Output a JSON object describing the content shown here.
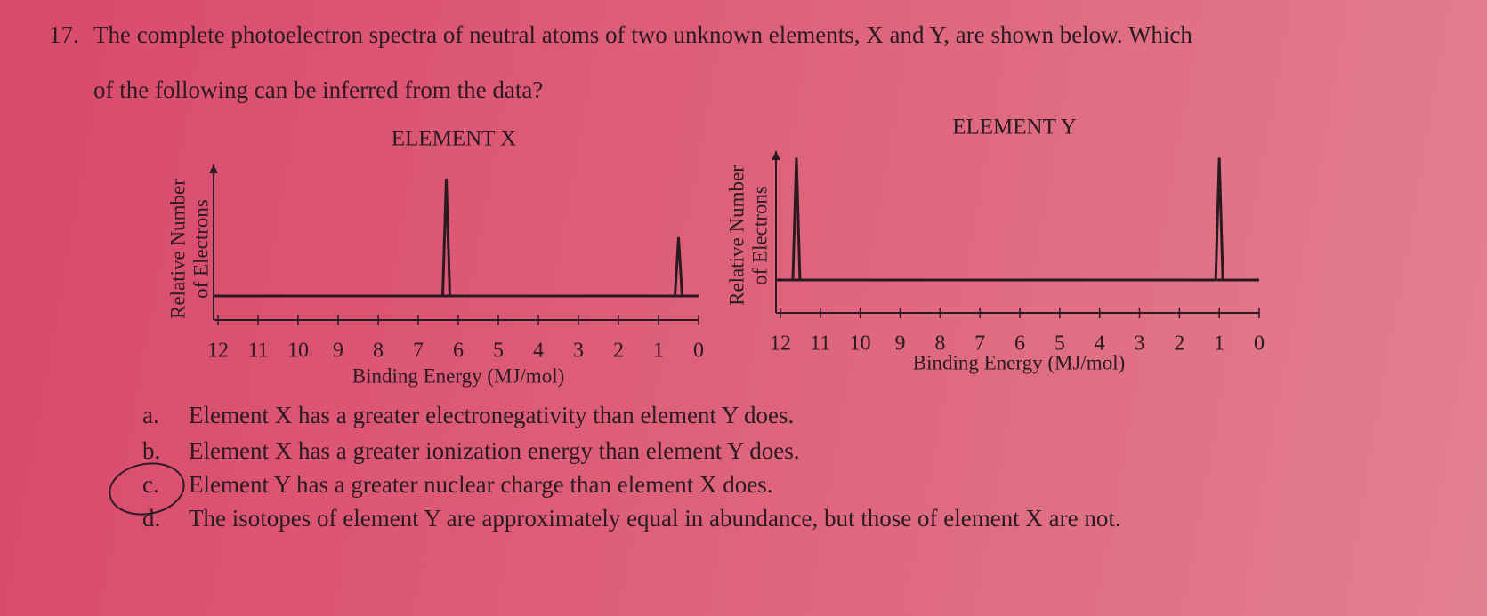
{
  "question": {
    "number": "17.",
    "text_lines": [
      "The complete photoelectron spectra of neutral atoms of two unknown elements, X and Y, are shown below. Which",
      "of the following can be inferred from the data?"
    ]
  },
  "chart_data": [
    {
      "type": "spectrum",
      "title": "ELEMENT X",
      "ylabel": [
        "Relative Number",
        "of Electrons"
      ],
      "xlabel": "Binding Energy (MJ/mol)",
      "x": [
        6.3,
        0.5
      ],
      "values": [
        2,
        1
      ],
      "xlim": [
        12,
        0
      ],
      "xticks": [
        12,
        11,
        10,
        9,
        8,
        7,
        6,
        5,
        4,
        3,
        2,
        1,
        0
      ],
      "ylim": [
        0,
        2.5
      ],
      "color": "#2a1a20"
    },
    {
      "type": "spectrum",
      "title": "ELEMENT Y",
      "ylabel": [
        "Relative Number",
        "of Electrons"
      ],
      "xlabel": "Binding Energy (MJ/mol)",
      "x": [
        11.6,
        1.0
      ],
      "values": [
        2,
        2
      ],
      "xlim": [
        12,
        0
      ],
      "xticks": [
        12,
        11,
        10,
        9,
        8,
        7,
        6,
        5,
        4,
        3,
        2,
        1,
        0
      ],
      "ylim": [
        0,
        2.5
      ],
      "color": "#2a1a20"
    }
  ],
  "options": [
    {
      "letter": "a.",
      "text": "Element X has a greater electronegativity than element Y does."
    },
    {
      "letter": "b.",
      "text": "Element X has a greater ionization energy than element Y does."
    },
    {
      "letter": "c.",
      "text": "Element Y has a greater nuclear charge than element X does."
    },
    {
      "letter": "d.",
      "text": "The isotopes of element Y are approximately equal in abundance, but those of element X are not."
    }
  ]
}
